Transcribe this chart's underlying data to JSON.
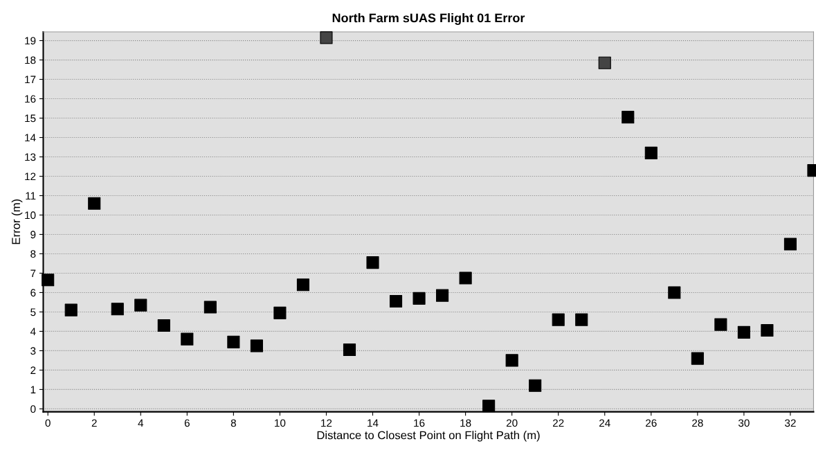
{
  "chart_data": {
    "type": "scatter",
    "title": "North Farm sUAS Flight 01 Error",
    "xlabel": "Distance to Closest Point on Flight Path (m)",
    "ylabel": "Error (m)",
    "x": [
      0,
      1,
      2,
      3,
      4,
      5,
      6,
      7,
      8,
      9,
      10,
      11,
      12,
      13,
      14,
      15,
      16,
      17,
      18,
      19,
      20,
      21,
      22,
      23,
      24,
      25,
      26,
      27,
      28,
      29,
      30,
      31,
      32,
      33
    ],
    "values": [
      6.65,
      5.1,
      10.6,
      5.15,
      5.35,
      4.3,
      3.6,
      5.25,
      3.45,
      3.25,
      4.95,
      6.4,
      19.15,
      3.05,
      7.55,
      5.55,
      5.7,
      5.85,
      6.75,
      0.15,
      2.5,
      1.2,
      4.6,
      4.6,
      17.85,
      15.05,
      13.2,
      6.0,
      2.6,
      4.35,
      3.95,
      4.05,
      8.5,
      12.3
    ],
    "colors": [
      "#000000",
      "#000000",
      "#000000",
      "#000000",
      "#000000",
      "#000000",
      "#000000",
      "#000000",
      "#000000",
      "#000000",
      "#000000",
      "#000000",
      "#444444",
      "#000000",
      "#000000",
      "#000000",
      "#000000",
      "#000000",
      "#000000",
      "#000000",
      "#000000",
      "#000000",
      "#000000",
      "#000000",
      "#444444",
      "#000000",
      "#000000",
      "#000000",
      "#000000",
      "#000000",
      "#000000",
      "#000000",
      "#000000",
      "#000000"
    ],
    "xlim": [
      -0.2,
      33
    ],
    "ylim": [
      -0.15,
      19.45
    ],
    "xticks": [
      0,
      2,
      4,
      6,
      8,
      10,
      12,
      14,
      16,
      18,
      20,
      22,
      24,
      26,
      28,
      30,
      32
    ],
    "yticks": [
      0,
      1,
      2,
      3,
      4,
      5,
      6,
      7,
      8,
      9,
      10,
      11,
      12,
      13,
      14,
      15,
      16,
      17,
      18,
      19
    ],
    "grid": "y",
    "marker": "square",
    "legend": false
  }
}
